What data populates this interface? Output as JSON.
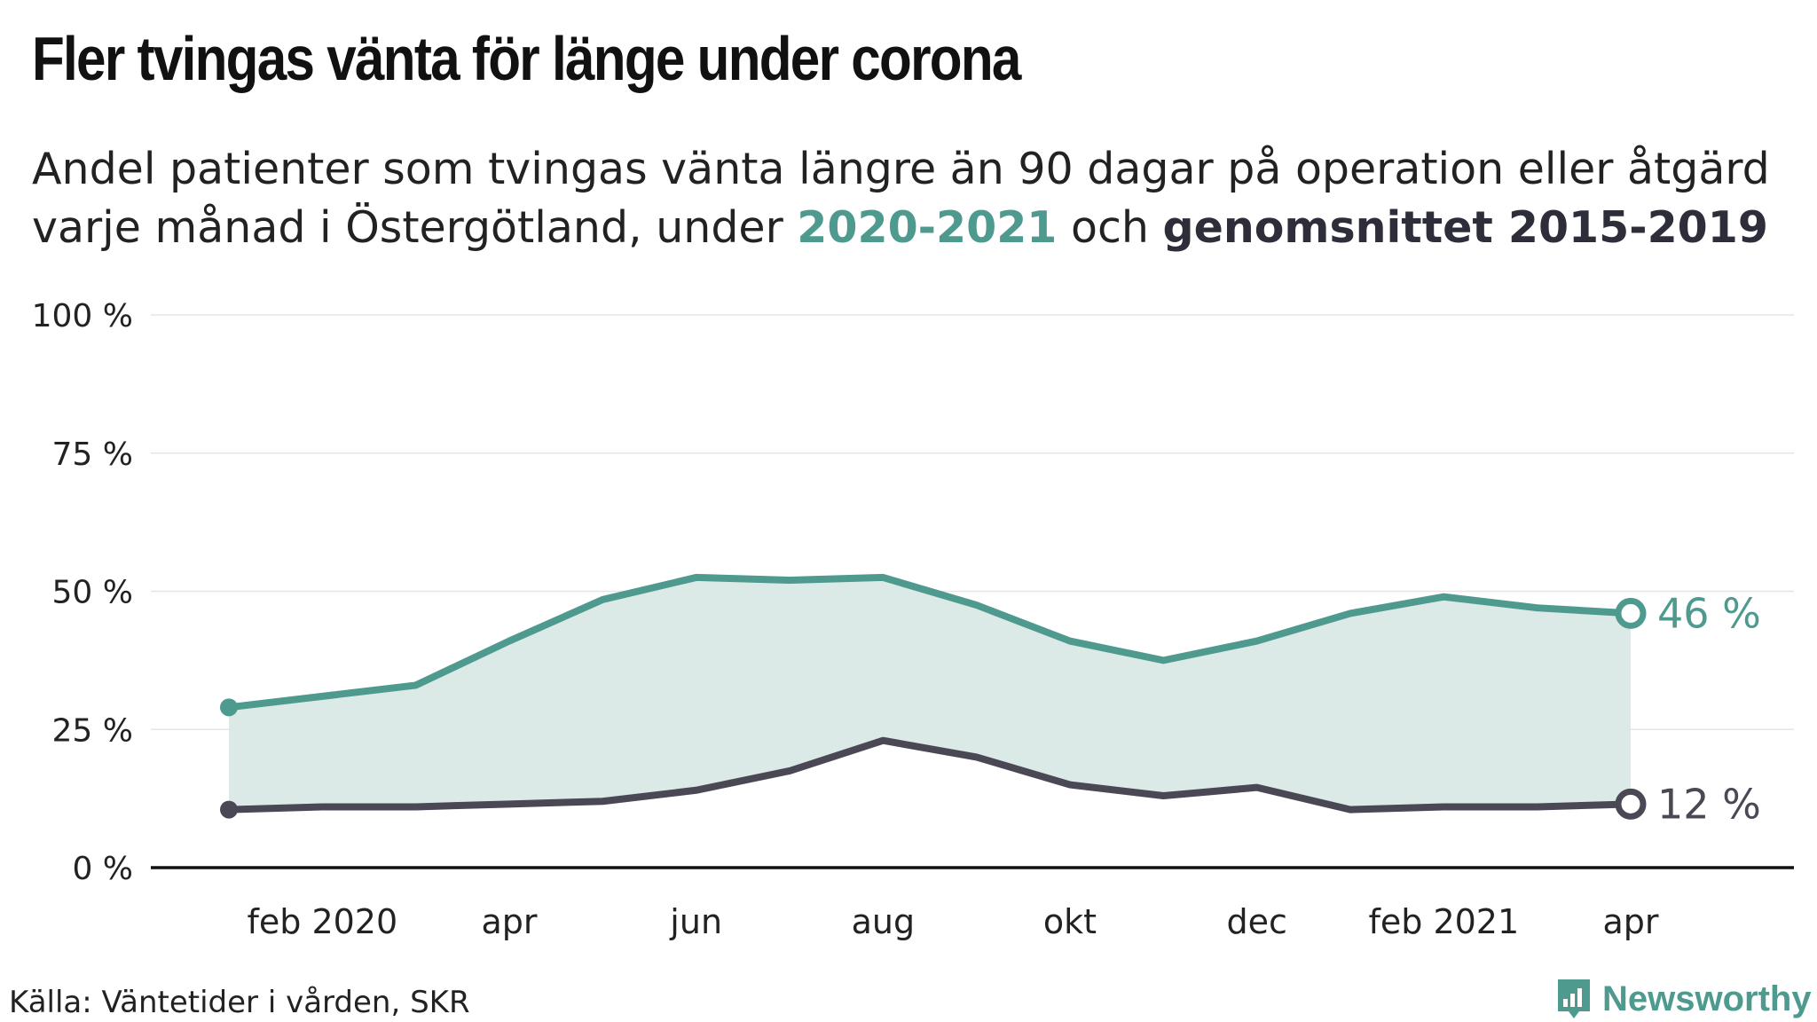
{
  "title": "Fler tvingas vänta för länge under corona",
  "subtitle": {
    "line1": "Andel patienter som tvingas vänta längre än 90 dagar på operation eller åtgärd",
    "line2_prefix": "varje månad i Östergötland, under ",
    "highlight_current": "2020-2021",
    "connector": " och ",
    "highlight_average": "genomsnittet 2015-2019"
  },
  "source": "Källa: Väntetider i vården, SKR",
  "brand": "Newsworthy",
  "colors": {
    "current": "#4e9a8e",
    "average": "#4a4855",
    "fill": "#dbe9e7",
    "grid": "#e6e6e6",
    "axis": "#111111"
  },
  "chart_data": {
    "type": "line",
    "ylim": [
      0,
      100
    ],
    "y_ticks": [
      0,
      25,
      50,
      75,
      100
    ],
    "y_tick_labels": [
      "0 %",
      "25 %",
      "50 %",
      "75 %",
      "100 %"
    ],
    "x": [
      "2020-01",
      "2020-02",
      "2020-03",
      "2020-04",
      "2020-05",
      "2020-06",
      "2020-07",
      "2020-08",
      "2020-09",
      "2020-10",
      "2020-11",
      "2020-12",
      "2021-01",
      "2021-02",
      "2021-03",
      "2021-04"
    ],
    "x_tick_labels": [
      {
        "x": "2020-02",
        "label": "feb 2020"
      },
      {
        "x": "2020-04",
        "label": "apr"
      },
      {
        "x": "2020-06",
        "label": "jun"
      },
      {
        "x": "2020-08",
        "label": "aug"
      },
      {
        "x": "2020-10",
        "label": "okt"
      },
      {
        "x": "2020-12",
        "label": "dec"
      },
      {
        "x": "2021-02",
        "label": "feb 2021"
      },
      {
        "x": "2021-04",
        "label": "apr"
      }
    ],
    "series": [
      {
        "name": "2020-2021",
        "color": "#4e9a8e",
        "values": [
          29,
          31,
          33,
          41,
          48.5,
          52.5,
          52,
          52.5,
          47.5,
          41,
          37.5,
          41,
          46,
          49,
          47,
          46
        ],
        "end_label": "46 %"
      },
      {
        "name": "genomsnittet 2015-2019",
        "color": "#4a4855",
        "values": [
          10.5,
          11,
          11,
          11.5,
          12,
          14,
          17.5,
          23,
          20,
          15,
          13,
          14.5,
          10.5,
          11,
          11,
          11.5
        ],
        "end_label": "12 %"
      }
    ],
    "shaded_between_series": true,
    "grid": true
  }
}
